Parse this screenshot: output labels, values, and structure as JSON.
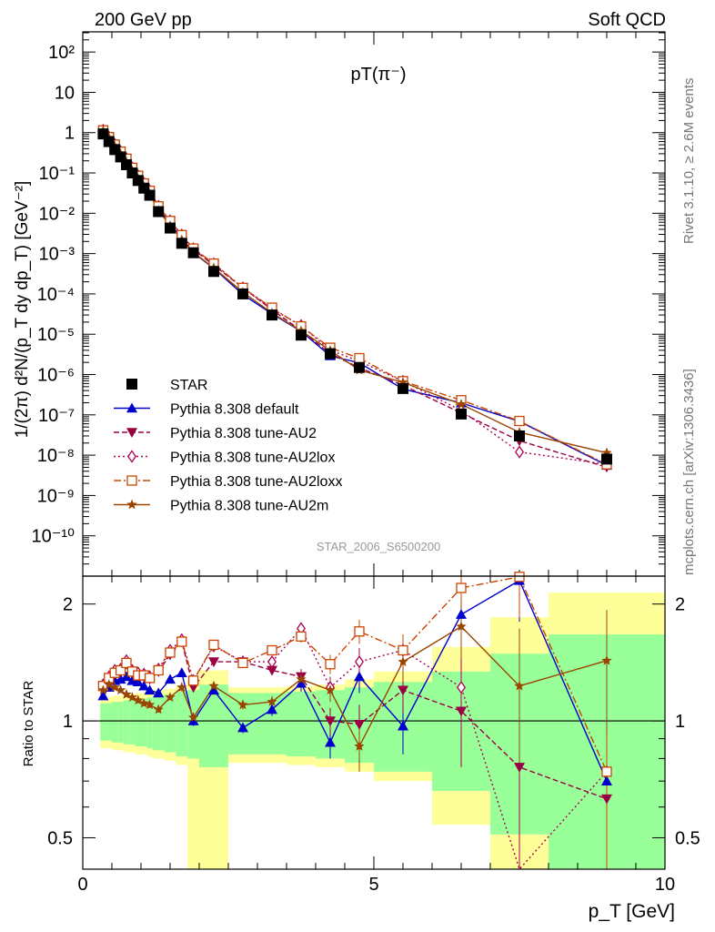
{
  "header": {
    "left": "200 GeV pp",
    "right": "Soft QCD"
  },
  "side_labels": {
    "rivet": "Rivet 3.1.10, ≥ 2.6M events",
    "mcplots": "mcplots.cern.ch [arXiv:1306.3436]"
  },
  "chart_data": {
    "type": "scatter",
    "title": "pT(π⁻)",
    "analysis_label": "STAR_2006_S6500200",
    "xlabel": "p_T [GeV]",
    "ylabel": "1/(2π) d²N/(p_T dy dp_T) [GeV⁻²]",
    "ratio_ylabel": "Ratio to STAR",
    "xlim": [
      0,
      10
    ],
    "ylim": [
      5e-11,
      500
    ],
    "ylog": true,
    "ratio_ylim": [
      0.42,
      2.35
    ],
    "ratio_log": true,
    "legend_position": "bottom-left",
    "x_ticks": [
      "0",
      "5",
      "10"
    ],
    "y_ticks": [
      "10⁻¹⁰",
      "10⁻⁹",
      "10⁻⁸",
      "10⁻⁷",
      "10⁻⁶",
      "10⁻⁵",
      "10⁻⁴",
      "10⁻³",
      "10⁻²",
      "10⁻¹",
      "1",
      "10",
      "10²"
    ],
    "ratio_ticks": [
      "0.5",
      "1",
      "2"
    ],
    "x": [
      0.35,
      0.45,
      0.55,
      0.65,
      0.75,
      0.85,
      0.95,
      1.05,
      1.15,
      1.3,
      1.5,
      1.7,
      1.9,
      2.25,
      2.75,
      3.25,
      3.75,
      4.25,
      4.75,
      5.5,
      6.5,
      7.5,
      9.0
    ],
    "bins": [
      [
        0.3,
        0.4
      ],
      [
        0.4,
        0.5
      ],
      [
        0.5,
        0.6
      ],
      [
        0.6,
        0.7
      ],
      [
        0.7,
        0.8
      ],
      [
        0.8,
        0.9
      ],
      [
        0.9,
        1.0
      ],
      [
        1.0,
        1.1
      ],
      [
        1.1,
        1.2
      ],
      [
        1.2,
        1.4
      ],
      [
        1.4,
        1.6
      ],
      [
        1.6,
        1.8
      ],
      [
        1.8,
        2.0
      ],
      [
        2.0,
        2.5
      ],
      [
        2.5,
        3.0
      ],
      [
        3.0,
        3.5
      ],
      [
        3.5,
        4.0
      ],
      [
        4.0,
        4.5
      ],
      [
        4.5,
        5.0
      ],
      [
        5.0,
        6.0
      ],
      [
        6.0,
        7.0
      ],
      [
        7.0,
        8.0
      ],
      [
        8.0,
        10.0
      ]
    ],
    "star": {
      "name": "STAR",
      "values": [
        0.93,
        0.6,
        0.38,
        0.25,
        0.16,
        0.1,
        0.065,
        0.042,
        0.028,
        0.011,
        0.0043,
        0.0018,
        0.00105,
        0.00036,
        0.0001,
        3e-05,
        9.5e-06,
        3.3e-06,
        1.5e-06,
        4.5e-07,
        1.05e-07,
        3e-08,
        8e-09
      ],
      "band_inner": [
        [
          0.89,
          1.11
        ],
        [
          0.89,
          1.11
        ],
        [
          0.88,
          1.12
        ],
        [
          0.88,
          1.12
        ],
        [
          0.87,
          1.13
        ],
        [
          0.87,
          1.13
        ],
        [
          0.86,
          1.14
        ],
        [
          0.86,
          1.14
        ],
        [
          0.85,
          1.15
        ],
        [
          0.84,
          1.16
        ],
        [
          0.83,
          1.17
        ],
        [
          0.81,
          1.19
        ],
        [
          0.8,
          1.2
        ],
        [
          0.76,
          1.24
        ],
        [
          0.82,
          1.18
        ],
        [
          0.82,
          1.18
        ],
        [
          0.81,
          1.19
        ],
        [
          0.8,
          1.2
        ],
        [
          0.78,
          1.22
        ],
        [
          0.74,
          1.26
        ],
        [
          0.66,
          1.34
        ],
        [
          0.51,
          1.49
        ],
        [
          0.33,
          1.67
        ]
      ],
      "band_outer": [
        [
          0.85,
          1.15
        ],
        [
          0.85,
          1.15
        ],
        [
          0.84,
          1.16
        ],
        [
          0.84,
          1.16
        ],
        [
          0.83,
          1.17
        ],
        [
          0.83,
          1.17
        ],
        [
          0.82,
          1.18
        ],
        [
          0.82,
          1.18
        ],
        [
          0.81,
          1.19
        ],
        [
          0.8,
          1.2
        ],
        [
          0.79,
          1.21
        ],
        [
          0.77,
          1.23
        ],
        [
          0.38,
          1.28
        ],
        [
          0.38,
          1.35
        ],
        [
          0.78,
          1.22
        ],
        [
          0.78,
          1.22
        ],
        [
          0.77,
          1.23
        ],
        [
          0.76,
          1.24
        ],
        [
          0.74,
          1.28
        ],
        [
          0.7,
          1.34
        ],
        [
          0.54,
          1.55
        ],
        [
          0.4,
          1.85
        ],
        [
          0.35,
          2.14
        ]
      ]
    },
    "series": [
      {
        "name": "Pythia 8.308 default",
        "color": "#0000cc",
        "dash": "",
        "marker": "triangle-up",
        "ratio": [
          1.16,
          1.22,
          1.27,
          1.28,
          1.3,
          1.27,
          1.26,
          1.23,
          1.2,
          1.18,
          1.28,
          1.33,
          1.0,
          1.2,
          0.96,
          1.07,
          1.25,
          0.88,
          1.3,
          0.97,
          1.88,
          2.3,
          0.7
        ],
        "errors": [
          0.02,
          0.02,
          0.02,
          0.02,
          0.02,
          0.02,
          0.02,
          0.02,
          0.02,
          0.02,
          0.02,
          0.03,
          0.03,
          0.03,
          0.03,
          0.04,
          0.06,
          0.08,
          0.12,
          0.15,
          0.3,
          0.5,
          0.5
        ]
      },
      {
        "name": "Pythia 8.308 tune-AU2",
        "color": "#990044",
        "dash": "6,3",
        "marker": "triangle-down",
        "ratio": [
          1.22,
          1.28,
          1.32,
          1.34,
          1.4,
          1.33,
          1.3,
          1.3,
          1.28,
          1.34,
          1.48,
          1.6,
          1.22,
          1.42,
          1.42,
          1.35,
          1.3,
          1.0,
          0.98,
          1.2,
          1.06,
          0.76,
          0.63
        ],
        "errors": [
          0.02,
          0.02,
          0.02,
          0.02,
          0.02,
          0.02,
          0.02,
          0.02,
          0.02,
          0.02,
          0.02,
          0.03,
          0.03,
          0.03,
          0.03,
          0.04,
          0.06,
          0.08,
          0.12,
          0.15,
          0.3,
          0.5,
          0.5
        ]
      },
      {
        "name": "Pythia 8.308 tune-AU2lox",
        "color": "#aa0055",
        "dash": "2,3",
        "marker": "diamond-open",
        "ratio": [
          1.24,
          1.3,
          1.35,
          1.36,
          1.43,
          1.35,
          1.33,
          1.32,
          1.3,
          1.36,
          1.52,
          1.62,
          1.27,
          1.56,
          1.42,
          1.42,
          1.73,
          1.22,
          1.42,
          1.52,
          1.22,
          0.4,
          0.74
        ],
        "errors": [
          0.02,
          0.02,
          0.02,
          0.02,
          0.02,
          0.02,
          0.02,
          0.02,
          0.02,
          0.02,
          0.02,
          0.03,
          0.03,
          0.03,
          0.03,
          0.04,
          0.06,
          0.08,
          0.12,
          0.15,
          0.3,
          0.5,
          0.5
        ]
      },
      {
        "name": "Pythia 8.308 tune-AU2loxx",
        "color": "#cc4400",
        "dash": "8,3,2,3",
        "marker": "square-open",
        "ratio": [
          1.23,
          1.29,
          1.33,
          1.35,
          1.41,
          1.34,
          1.31,
          1.31,
          1.29,
          1.35,
          1.5,
          1.6,
          1.27,
          1.57,
          1.41,
          1.52,
          1.65,
          1.4,
          1.7,
          1.52,
          2.2,
          2.35,
          0.74
        ],
        "errors": [
          0.02,
          0.02,
          0.02,
          0.02,
          0.02,
          0.02,
          0.02,
          0.02,
          0.02,
          0.02,
          0.02,
          0.03,
          0.03,
          0.03,
          0.03,
          0.04,
          0.06,
          0.08,
          0.12,
          0.15,
          0.3,
          0.5,
          0.5
        ]
      },
      {
        "name": "Pythia 8.308 tune-AU2m",
        "color": "#994400",
        "dash": "",
        "marker": "star",
        "ratio": [
          1.2,
          1.24,
          1.22,
          1.2,
          1.17,
          1.15,
          1.13,
          1.11,
          1.1,
          1.07,
          1.15,
          1.22,
          1.02,
          1.23,
          1.1,
          1.12,
          1.28,
          1.2,
          0.86,
          1.42,
          1.75,
          1.23,
          1.43
        ],
        "errors": [
          0.02,
          0.02,
          0.02,
          0.02,
          0.02,
          0.02,
          0.02,
          0.02,
          0.02,
          0.02,
          0.02,
          0.03,
          0.03,
          0.03,
          0.03,
          0.04,
          0.06,
          0.08,
          0.12,
          0.15,
          0.3,
          0.5,
          0.5
        ]
      }
    ]
  }
}
